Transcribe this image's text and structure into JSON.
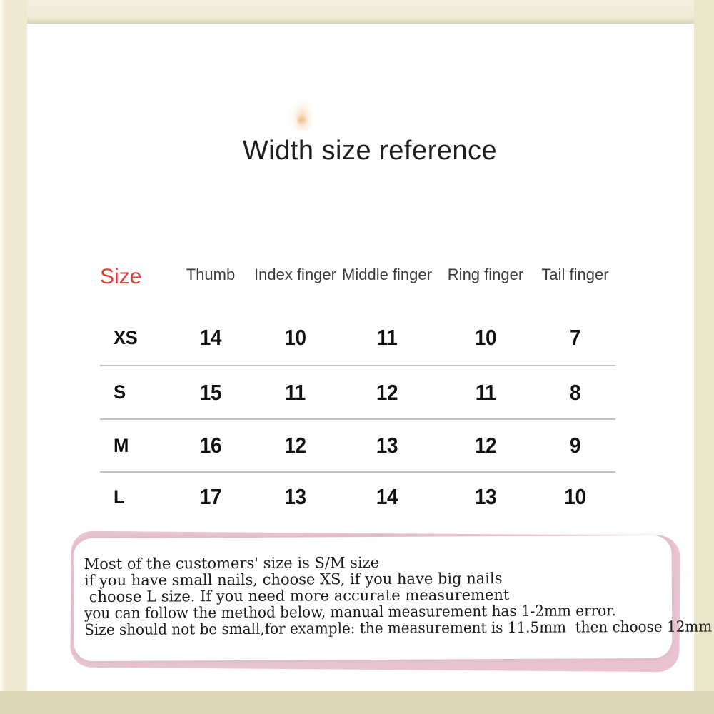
{
  "title": "Width size reference",
  "chart_data": {
    "type": "table",
    "title": "Width size reference",
    "header": {
      "size_label": "Size",
      "columns": [
        "Thumb",
        "Index finger",
        "Middle finger",
        "Ring finger",
        "Tail finger"
      ]
    },
    "rows": [
      {
        "size": "XS",
        "values": [
          14,
          10,
          11,
          10,
          7
        ]
      },
      {
        "size": "S",
        "values": [
          15,
          11,
          12,
          11,
          8
        ]
      },
      {
        "size": "M",
        "values": [
          16,
          12,
          13,
          12,
          9
        ]
      },
      {
        "size": "L",
        "values": [
          17,
          13,
          14,
          13,
          10
        ]
      }
    ]
  },
  "note": {
    "lines": [
      "Most of the customers' size is S/M size",
      "if you have small nails, choose XS, if you have big nails",
      " choose L size. If you need more accurate measurement",
      "you can follow the method below, manual measurement has 1-2mm error.",
      "Size should not be small,for example: the measurement is 11.5mm  then choose 12mm"
    ]
  },
  "colors": {
    "size_accent_red": "#d9403a",
    "note_pink": "#e9c4cf",
    "frame_cream": "#efe9d1",
    "frame_bottom": "#dcd5b8",
    "separator_gray": "#c2c2c2"
  }
}
